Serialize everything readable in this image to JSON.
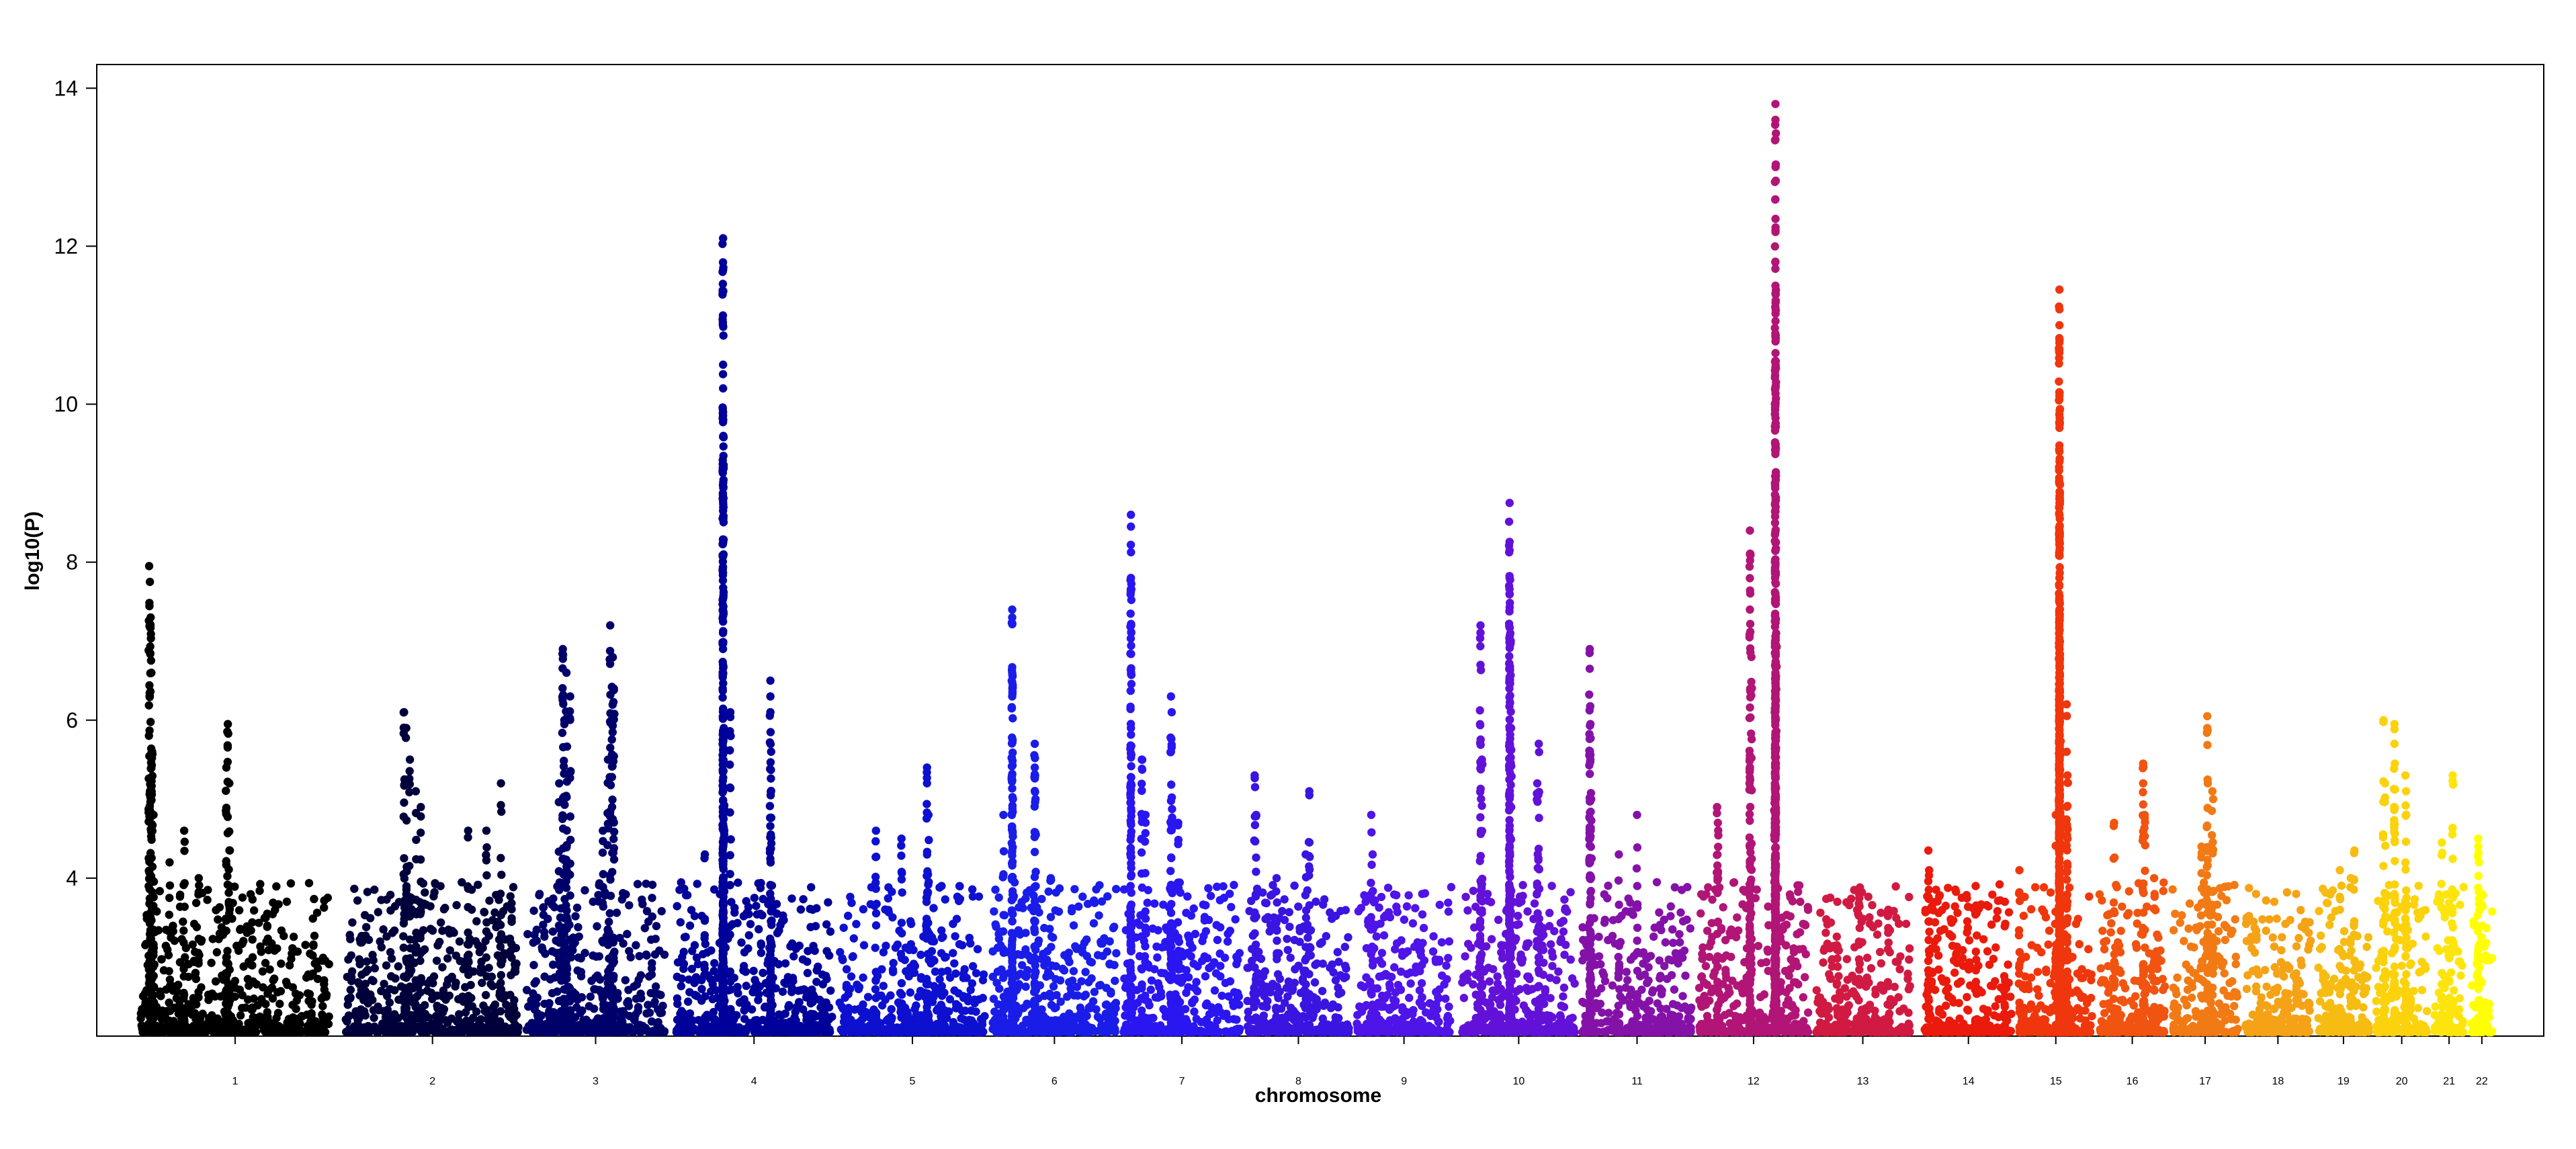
{
  "chart_data": {
    "type": "scatter",
    "title": "",
    "xlabel": "chromosome",
    "ylabel": "log10(P)",
    "ylim": [
      2.0,
      14.3
    ],
    "y_ticks": [
      4,
      6,
      8,
      10,
      12,
      14
    ],
    "y_tick_labels": [
      "4",
      "6",
      "8",
      "10",
      "12",
      "14"
    ],
    "grid": false,
    "legend": "none",
    "categories": [
      "1",
      "2",
      "3",
      "4",
      "5",
      "6",
      "7",
      "8",
      "9",
      "10",
      "11",
      "12",
      "13",
      "14",
      "15",
      "16",
      "17",
      "18",
      "19",
      "20",
      "21",
      "22"
    ],
    "chromosomes": [
      {
        "name": "1",
        "color": "#000000",
        "start": 0.0,
        "end": 26.0,
        "peaks": [
          [
            1.2,
            7.95
          ],
          [
            1.3,
            7.75
          ],
          [
            1.4,
            7.3
          ],
          [
            1.5,
            6.6
          ],
          [
            1.6,
            5.6
          ],
          [
            1.8,
            4.8
          ],
          [
            12.0,
            5.95
          ],
          [
            11.8,
            5.4
          ],
          [
            12.2,
            5.2
          ],
          [
            6.0,
            4.6
          ],
          [
            4.0,
            4.2
          ],
          [
            8.0,
            4.0
          ]
        ]
      },
      {
        "name": "2",
        "color": "#00003a",
        "start": 28.2,
        "end": 52.0,
        "peaks": [
          [
            36.2,
            6.1
          ],
          [
            36.5,
            5.9
          ],
          [
            37.0,
            5.5
          ],
          [
            37.8,
            5.1
          ],
          [
            38.5,
            4.9
          ],
          [
            45.0,
            4.6
          ],
          [
            49.5,
            5.2
          ],
          [
            47.5,
            4.6
          ]
        ]
      },
      {
        "name": "3",
        "color": "#00006a",
        "start": 53.0,
        "end": 72.0,
        "peaks": [
          [
            58.0,
            6.9
          ],
          [
            58.5,
            6.6
          ],
          [
            59.0,
            6.3
          ],
          [
            58.2,
            6.0
          ],
          [
            64.5,
            7.2
          ],
          [
            64.8,
            6.8
          ],
          [
            65.0,
            6.4
          ],
          [
            64.2,
            5.5
          ],
          [
            57.5,
            5.2
          ],
          [
            63.5,
            4.6
          ]
        ]
      },
      {
        "name": "4",
        "color": "#00009a",
        "start": 73.5,
        "end": 95.0,
        "peaks": [
          [
            80.0,
            12.1
          ],
          [
            80.0,
            11.7
          ],
          [
            80.0,
            10.5
          ],
          [
            80.0,
            10.2
          ],
          [
            80.0,
            9.9
          ],
          [
            80.0,
            8.65
          ],
          [
            80.1,
            5.9
          ],
          [
            81.0,
            6.1
          ],
          [
            80.0,
            5.1
          ],
          [
            86.5,
            6.5
          ],
          [
            86.5,
            6.3
          ],
          [
            86.6,
            5.6
          ],
          [
            77.5,
            4.3
          ]
        ]
      },
      {
        "name": "5",
        "color": "#0e10d0",
        "start": 96.0,
        "end": 116.0,
        "peaks": [
          [
            108.0,
            5.4
          ],
          [
            108.0,
            5.2
          ],
          [
            108.2,
            4.8
          ],
          [
            104.5,
            4.5
          ],
          [
            101.0,
            4.6
          ],
          [
            110.0,
            3.9
          ]
        ]
      },
      {
        "name": "6",
        "color": "#1a1de8",
        "start": 117.0,
        "end": 134.0,
        "peaks": [
          [
            119.7,
            7.4
          ],
          [
            119.7,
            7.3
          ],
          [
            119.7,
            6.6
          ],
          [
            119.7,
            6.3
          ],
          [
            119.8,
            5.0
          ],
          [
            122.8,
            5.7
          ],
          [
            122.8,
            5.4
          ],
          [
            122.9,
            5.0
          ],
          [
            118.5,
            4.8
          ],
          [
            125.0,
            4.0
          ]
        ]
      },
      {
        "name": "7",
        "color": "#2a16f0",
        "start": 135.0,
        "end": 151.0,
        "peaks": [
          [
            136.0,
            8.6
          ],
          [
            136.0,
            8.45
          ],
          [
            136.0,
            7.8
          ],
          [
            136.0,
            5.9
          ],
          [
            137.5,
            5.5
          ],
          [
            138.0,
            4.8
          ],
          [
            141.5,
            6.3
          ],
          [
            141.6,
            6.1
          ],
          [
            141.5,
            5.6
          ],
          [
            142.5,
            4.7
          ]
        ]
      },
      {
        "name": "8",
        "color": "#3a14e0",
        "start": 152.0,
        "end": 166.0,
        "peaks": [
          [
            153.0,
            5.3
          ],
          [
            153.2,
            4.8
          ],
          [
            160.5,
            5.1
          ],
          [
            160.0,
            4.3
          ],
          [
            156.0,
            4.0
          ]
        ]
      },
      {
        "name": "9",
        "color": "#4e14e8",
        "start": 167.0,
        "end": 180.0,
        "peaks": [
          [
            169.0,
            4.8
          ],
          [
            169.2,
            4.3
          ],
          [
            176.0,
            3.8
          ]
        ]
      },
      {
        "name": "10",
        "color": "#6212d8",
        "start": 181.5,
        "end": 197.0,
        "peaks": [
          [
            188.0,
            8.75
          ],
          [
            188.0,
            8.15
          ],
          [
            188.0,
            7.8
          ],
          [
            188.0,
            7.6
          ],
          [
            188.1,
            7.1
          ],
          [
            188.0,
            6.5
          ],
          [
            188.2,
            5.9
          ],
          [
            184.0,
            7.2
          ],
          [
            184.0,
            6.7
          ],
          [
            184.2,
            5.5
          ],
          [
            192.0,
            5.7
          ],
          [
            191.8,
            5.2
          ]
        ]
      },
      {
        "name": "11",
        "color": "#8412a8",
        "start": 198.0,
        "end": 213.0,
        "peaks": [
          [
            199.0,
            6.9
          ],
          [
            199.0,
            6.65
          ],
          [
            199.1,
            5.95
          ],
          [
            199.1,
            5.5
          ],
          [
            199.2,
            5.0
          ],
          [
            205.5,
            4.8
          ],
          [
            203.0,
            4.3
          ]
        ]
      },
      {
        "name": "12",
        "color": "#b11576",
        "start": 214.0,
        "end": 229.0,
        "peaks": [
          [
            224.5,
            13.8
          ],
          [
            224.5,
            13.6
          ],
          [
            224.5,
            13.35
          ],
          [
            224.5,
            11.5
          ],
          [
            224.5,
            11.4
          ],
          [
            224.5,
            10.55
          ],
          [
            224.5,
            10.2
          ],
          [
            224.5,
            7.6
          ],
          [
            224.6,
            7.1
          ],
          [
            224.5,
            6.6
          ],
          [
            224.4,
            6.1
          ],
          [
            221.0,
            8.4
          ],
          [
            221.0,
            8.1
          ],
          [
            221.0,
            7.4
          ],
          [
            221.2,
            6.8
          ],
          [
            216.5,
            4.9
          ],
          [
            216.6,
            4.7
          ]
        ]
      },
      {
        "name": "13",
        "color": "#d01a42",
        "start": 230.0,
        "end": 243.0,
        "peaks": [
          [
            233.0,
            3.7
          ],
          [
            236.0,
            3.8
          ],
          [
            240.0,
            3.6
          ]
        ]
      },
      {
        "name": "14",
        "color": "#ea1a0c",
        "start": 245.0,
        "end": 257.0,
        "peaks": [
          [
            245.5,
            4.35
          ],
          [
            245.6,
            4.1
          ],
          [
            252.0,
            3.9
          ],
          [
            256.0,
            3.7
          ]
        ]
      },
      {
        "name": "15",
        "color": "#f0360c",
        "start": 258.0,
        "end": 268.0,
        "peaks": [
          [
            263.5,
            11.45
          ],
          [
            263.5,
            11.2
          ],
          [
            263.5,
            11.0
          ],
          [
            263.5,
            9.7
          ],
          [
            263.5,
            9.4
          ],
          [
            263.5,
            9.0
          ],
          [
            263.5,
            8.8
          ],
          [
            263.5,
            8.4
          ],
          [
            263.5,
            7.8
          ],
          [
            263.5,
            7.4
          ],
          [
            263.5,
            7.0
          ],
          [
            263.5,
            6.6
          ],
          [
            263.6,
            6.2
          ],
          [
            264.5,
            6.2
          ],
          [
            264.5,
            5.6
          ],
          [
            264.6,
            5.3
          ],
          [
            263.0,
            4.8
          ],
          [
            258.0,
            4.1
          ]
        ]
      },
      {
        "name": "16",
        "color": "#f05410",
        "start": 269.0,
        "end": 278.0,
        "peaks": [
          [
            275.0,
            5.45
          ],
          [
            275.0,
            5.2
          ],
          [
            275.2,
            4.8
          ],
          [
            271.0,
            4.7
          ],
          [
            276.5,
            4.0
          ]
        ]
      },
      {
        "name": "17",
        "color": "#f27a14",
        "start": 279.0,
        "end": 288.0,
        "peaks": [
          [
            283.8,
            6.05
          ],
          [
            283.8,
            5.9
          ],
          [
            284.5,
            5.1
          ],
          [
            284.6,
            5.0
          ],
          [
            283.0,
            4.4
          ]
        ]
      },
      {
        "name": "18",
        "color": "#f5a216",
        "start": 289.0,
        "end": 298.0,
        "peaks": [
          [
            290.5,
            3.8
          ],
          [
            293.0,
            3.7
          ],
          [
            296.0,
            3.8
          ]
        ]
      },
      {
        "name": "19",
        "color": "#f7bc12",
        "start": 299.0,
        "end": 306.0,
        "peaks": [
          [
            302.0,
            4.1
          ],
          [
            304.0,
            4.35
          ],
          [
            303.5,
            4.0
          ]
        ]
      },
      {
        "name": "20",
        "color": "#fbd20c",
        "start": 307.0,
        "end": 314.0,
        "peaks": [
          [
            308.0,
            6.0
          ],
          [
            309.5,
            5.95
          ],
          [
            309.5,
            5.7
          ],
          [
            311.0,
            5.3
          ],
          [
            311.1,
            5.1
          ],
          [
            308.2,
            5.2
          ]
        ]
      },
      {
        "name": "21",
        "color": "#fde40c",
        "start": 315.0,
        "end": 319.0,
        "peaks": [
          [
            316.0,
            4.45
          ],
          [
            317.5,
            5.3
          ],
          [
            317.0,
            3.8
          ]
        ]
      },
      {
        "name": "22",
        "color": "#ffff00",
        "start": 320.0,
        "end": 323.0,
        "peaks": [
          [
            321.0,
            4.5
          ],
          [
            321.1,
            4.2
          ],
          [
            321.5,
            3.8
          ]
        ]
      }
    ]
  }
}
